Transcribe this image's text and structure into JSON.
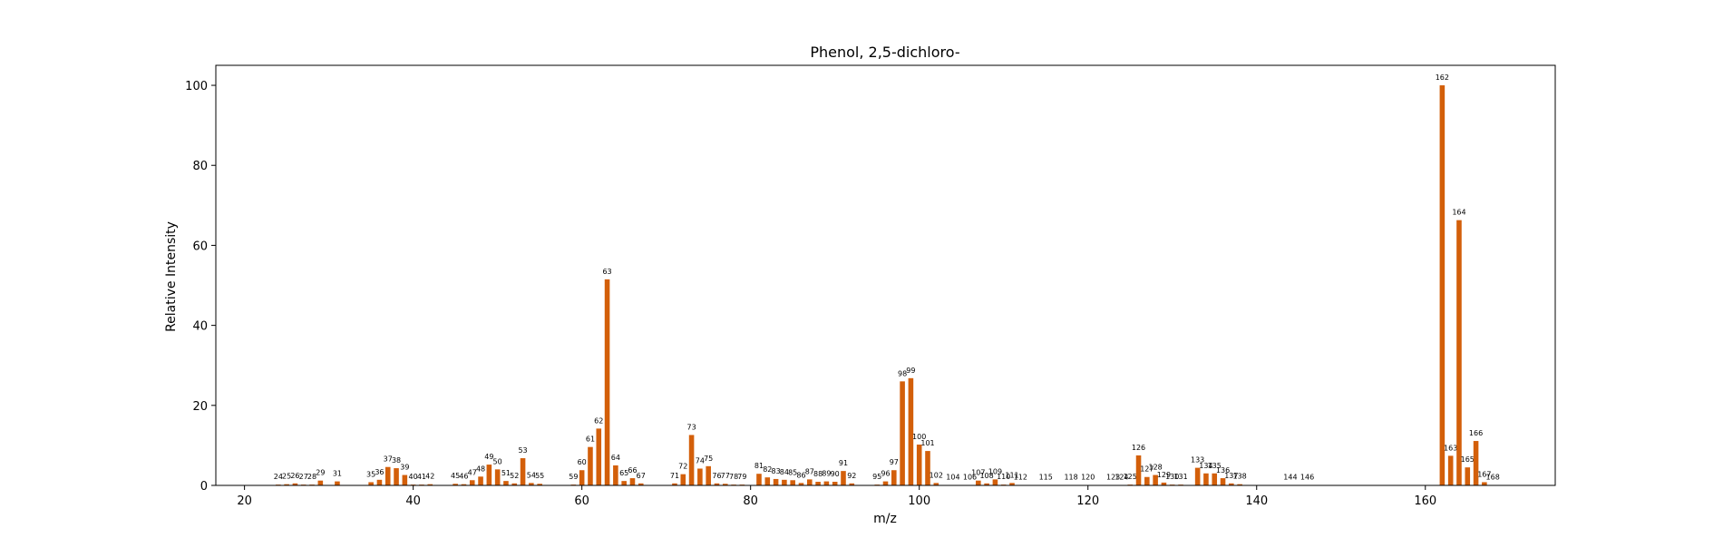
{
  "chart_data": {
    "type": "bar",
    "title": "Phenol, 2,5-dichloro-",
    "xlabel": "m/z",
    "ylabel": "Relative Intensity",
    "xlim": [
      16.6,
      175.4
    ],
    "ylim": [
      0,
      105
    ],
    "xticks": [
      20,
      40,
      60,
      80,
      100,
      120,
      140,
      160
    ],
    "yticks": [
      0,
      20,
      40,
      60,
      80,
      100
    ],
    "bar_color": "#d35f0a",
    "series": [
      {
        "x": [
          24,
          25,
          26,
          27,
          28,
          29,
          31,
          35,
          36,
          37,
          38,
          39,
          40,
          41,
          42,
          45,
          46,
          47,
          48,
          49,
          50,
          51,
          52,
          53,
          54,
          55,
          59,
          60,
          61,
          62,
          63,
          64,
          65,
          66,
          67,
          71,
          72,
          73,
          74,
          75,
          76,
          77,
          78,
          79,
          81,
          82,
          83,
          84,
          85,
          86,
          87,
          88,
          89,
          90,
          91,
          92,
          95,
          96,
          97,
          98,
          99,
          100,
          101,
          102,
          104,
          106,
          107,
          108,
          109,
          110,
          111,
          112,
          115,
          118,
          120,
          123,
          124,
          125,
          126,
          127,
          128,
          129,
          130,
          131,
          133,
          134,
          135,
          136,
          137,
          138,
          144,
          146,
          162,
          163,
          164,
          165,
          166,
          167,
          168
        ],
        "values": [
          0.2,
          0.3,
          0.5,
          0.2,
          0.2,
          1.2,
          1.0,
          0.8,
          1.4,
          4.6,
          4.3,
          2.6,
          0.2,
          0.2,
          0.3,
          0.4,
          0.3,
          1.3,
          2.2,
          5.2,
          4.0,
          1.1,
          0.5,
          6.8,
          0.6,
          0.4,
          0.2,
          3.8,
          9.6,
          14.2,
          51.5,
          5.0,
          1.1,
          1.8,
          0.5,
          0.5,
          2.8,
          12.6,
          4.2,
          4.8,
          0.5,
          0.4,
          0.2,
          0.2,
          2.9,
          2.0,
          1.6,
          1.4,
          1.3,
          0.6,
          1.5,
          0.9,
          1.0,
          0.9,
          3.6,
          0.5,
          0.2,
          1.0,
          3.8,
          26.0,
          26.8,
          10.2,
          8.6,
          0.6,
          0.1,
          0.1,
          1.2,
          0.5,
          1.5,
          0.2,
          0.6,
          0.1,
          0.1,
          0.1,
          0.1,
          0.1,
          0.1,
          0.2,
          7.5,
          2.1,
          2.6,
          0.7,
          0.2,
          0.2,
          4.4,
          3.0,
          3.0,
          1.8,
          0.5,
          0.3,
          0.1,
          0.1,
          100.0,
          7.4,
          66.3,
          4.5,
          11.1,
          0.8,
          0.1
        ]
      }
    ]
  }
}
